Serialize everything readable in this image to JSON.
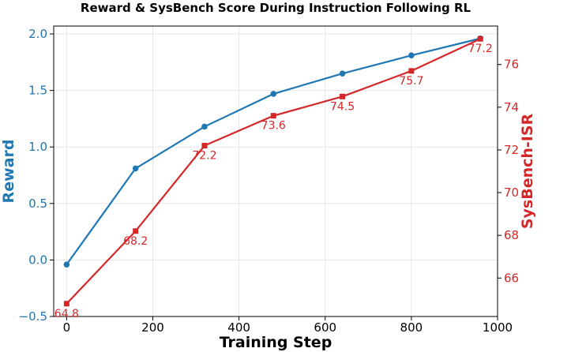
{
  "chart_data": {
    "type": "line",
    "title": "Reward & SysBench Score During Instruction Following RL",
    "xlabel": "Training Step",
    "ylabel_left": "Reward",
    "ylabel_right": "SysBench-ISR",
    "xlim": [
      -30,
      1000
    ],
    "ylim_left": [
      -0.5,
      2.07
    ],
    "ylim_right": [
      64.2,
      77.8
    ],
    "xticks": [
      0,
      200,
      400,
      600,
      800,
      1000
    ],
    "yticks_left": [
      -0.5,
      0.0,
      0.5,
      1.0,
      1.5,
      2.0
    ],
    "yticks_right": [
      66,
      68,
      70,
      72,
      74,
      76
    ],
    "grid": true,
    "x": [
      0,
      160,
      320,
      480,
      640,
      800,
      960
    ],
    "series": [
      {
        "axis": "left",
        "color": "#1f77b4",
        "marker": "circle",
        "values": [
          -0.04,
          0.81,
          1.18,
          1.47,
          1.65,
          1.81,
          1.96
        ]
      },
      {
        "axis": "right",
        "color": "#d62728",
        "marker": "square",
        "values": [
          64.8,
          68.2,
          72.2,
          73.6,
          74.5,
          75.7,
          77.2
        ],
        "data_labels": [
          "64.8",
          "68.2",
          "72.2",
          "73.6",
          "74.5",
          "75.7",
          "77.2"
        ]
      }
    ]
  }
}
